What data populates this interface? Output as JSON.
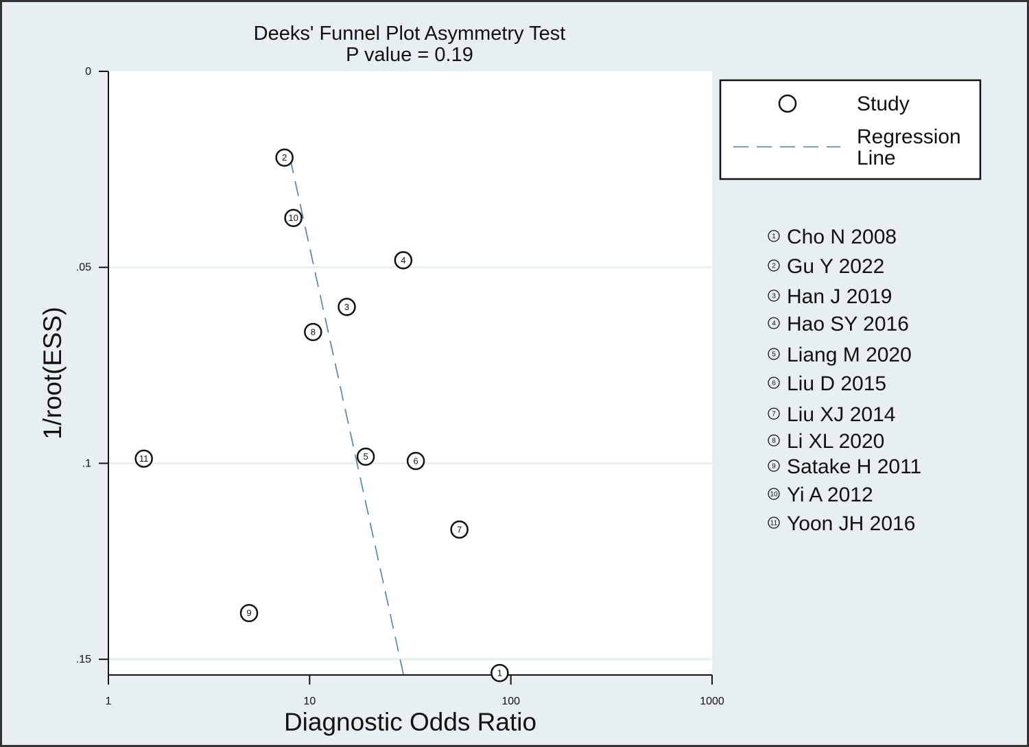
{
  "chart_data": {
    "type": "scatter",
    "title": "Deeks' Funnel Plot Asymmetry Test",
    "subtitle": "P value  =   0.19",
    "xlabel": "Diagnostic Odds Ratio",
    "ylabel": "1/root(ESS)",
    "x_scale": "log",
    "xlim": [
      1,
      1000
    ],
    "ylim": [
      0.154,
      0
    ],
    "x_ticks": [
      {
        "value": 1,
        "label": "1"
      },
      {
        "value": 10,
        "label": "10"
      },
      {
        "value": 100,
        "label": "100"
      },
      {
        "value": 1000,
        "label": "1000"
      }
    ],
    "y_ticks": [
      {
        "value": 0,
        "label": "0"
      },
      {
        "value": 0.05,
        "label": ".05"
      },
      {
        "value": 0.1,
        "label": ".1"
      },
      {
        "value": 0.15,
        "label": ".15"
      }
    ],
    "grid": true,
    "legend": {
      "position": "right",
      "entries": [
        {
          "label": "Study",
          "symbol": "circle"
        },
        {
          "label": "Regression",
          "label2": "Line",
          "symbol": "dashed-line"
        }
      ]
    },
    "studies": [
      {
        "id": "1",
        "label": "Cho N 2008",
        "dor": 88,
        "inv_root_ess": 0.1535
      },
      {
        "id": "2",
        "label": "Gu Y 2022",
        "dor": 7.5,
        "inv_root_ess": 0.022
      },
      {
        "id": "3",
        "label": "Han J 2019",
        "dor": 15.3,
        "inv_root_ess": 0.0601
      },
      {
        "id": "4",
        "label": "Hao SY 2016",
        "dor": 29.2,
        "inv_root_ess": 0.0482
      },
      {
        "id": "5",
        "label": "Liang M 2020",
        "dor": 19.0,
        "inv_root_ess": 0.0983
      },
      {
        "id": "6",
        "label": "Liu D 2015",
        "dor": 33.7,
        "inv_root_ess": 0.0994
      },
      {
        "id": "7",
        "label": "Liu XJ 2014",
        "dor": 55.5,
        "inv_root_ess": 0.1169
      },
      {
        "id": "8",
        "label": "Li XL 2020",
        "dor": 10.4,
        "inv_root_ess": 0.0665
      },
      {
        "id": "9",
        "label": "Satake H 2011",
        "dor": 5.0,
        "inv_root_ess": 0.1382
      },
      {
        "id": "10",
        "label": "Yi A 2012",
        "dor": 8.3,
        "inv_root_ess": 0.0374
      },
      {
        "id": "11",
        "label": "Yoon JH 2016",
        "dor": 1.5,
        "inv_root_ess": 0.0988
      }
    ],
    "regression_line": {
      "style": "dashed",
      "color": "#4a7fa6",
      "points": [
        {
          "dor": 8.0,
          "inv_root_ess": 0.0222
        },
        {
          "dor": 29.3,
          "inv_root_ess": 0.154
        }
      ]
    },
    "colors": {
      "outer_background": "#e7eff1",
      "plot_background": "#ffffff",
      "gridline": "#e7eff1",
      "regression": "#4a7fa6",
      "frame": "#333333"
    }
  }
}
